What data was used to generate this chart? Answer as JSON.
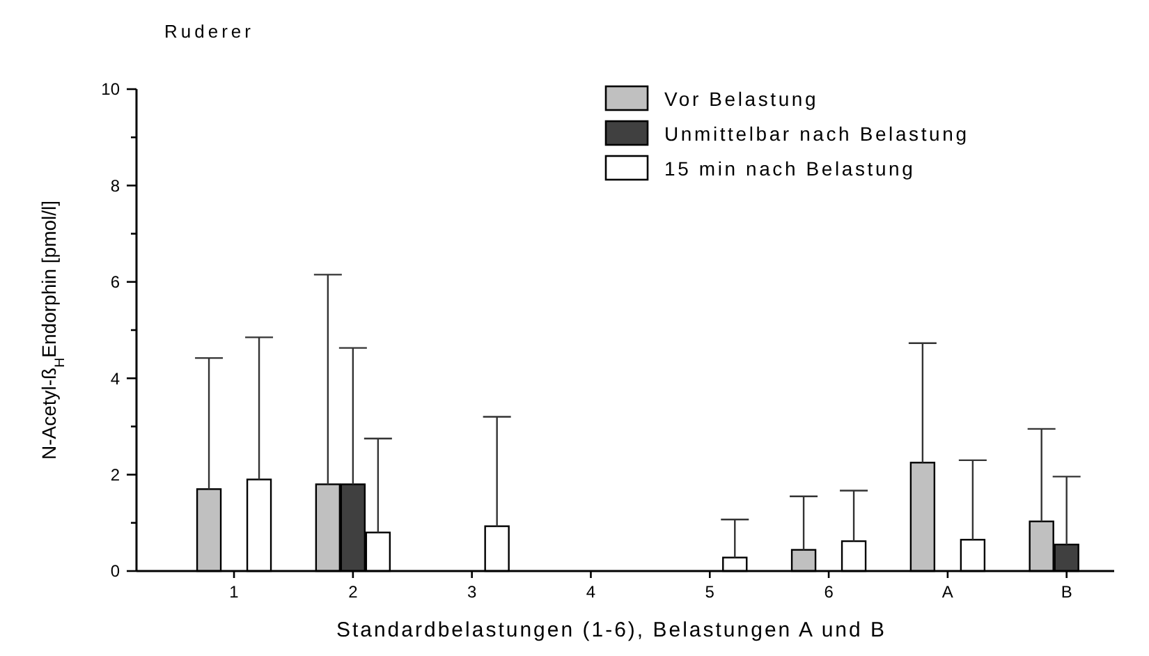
{
  "chart_data": {
    "type": "bar",
    "title": "Ruderer",
    "xlabel": "Standardbelastungen (1-6), Belastungen A und B",
    "ylabel": "N-Acetyl-ß$_{H}$Endorphin [pmol/l]",
    "categories": [
      "1",
      "2",
      "3",
      "4",
      "5",
      "6",
      "A",
      "B"
    ],
    "series": [
      {
        "name": "Vor Belastung",
        "color": "#c0c0c0",
        "values": [
          1.7,
          1.8,
          null,
          null,
          null,
          0.44,
          2.25,
          1.03
        ],
        "errors": [
          [
            1.7,
            4.42
          ],
          [
            1.8,
            6.15
          ],
          null,
          null,
          null,
          [
            0.44,
            1.55
          ],
          [
            2.25,
            4.73
          ],
          [
            1.03,
            2.95
          ]
        ]
      },
      {
        "name": "Unmittelbar nach Belastung",
        "color": "#404040",
        "values": [
          null,
          1.8,
          null,
          null,
          null,
          null,
          null,
          0.55
        ],
        "errors": [
          null,
          [
            1.8,
            4.63
          ],
          null,
          null,
          null,
          null,
          null,
          [
            0.55,
            1.96
          ]
        ]
      },
      {
        "name": "15 min nach Belastung",
        "color": "#ffffff",
        "values": [
          1.9,
          0.8,
          0.93,
          null,
          0.28,
          0.62,
          0.65,
          null
        ],
        "errors": [
          [
            1.9,
            4.85
          ],
          [
            0.8,
            2.75
          ],
          [
            0.93,
            3.2
          ],
          null,
          [
            0.28,
            1.07
          ],
          [
            0.62,
            1.67
          ],
          [
            0.65,
            2.3
          ],
          null
        ]
      }
    ],
    "ylim": [
      0,
      10
    ],
    "yticks": [
      0,
      {
        "value": 1,
        "label": null
      },
      2,
      {
        "value": 3,
        "label": null
      },
      4,
      {
        "value": 5,
        "label": null
      },
      6,
      {
        "value": 7,
        "label": null
      },
      8,
      {
        "value": 9,
        "label": null
      },
      10
    ],
    "grid": false,
    "legend": "top right"
  }
}
